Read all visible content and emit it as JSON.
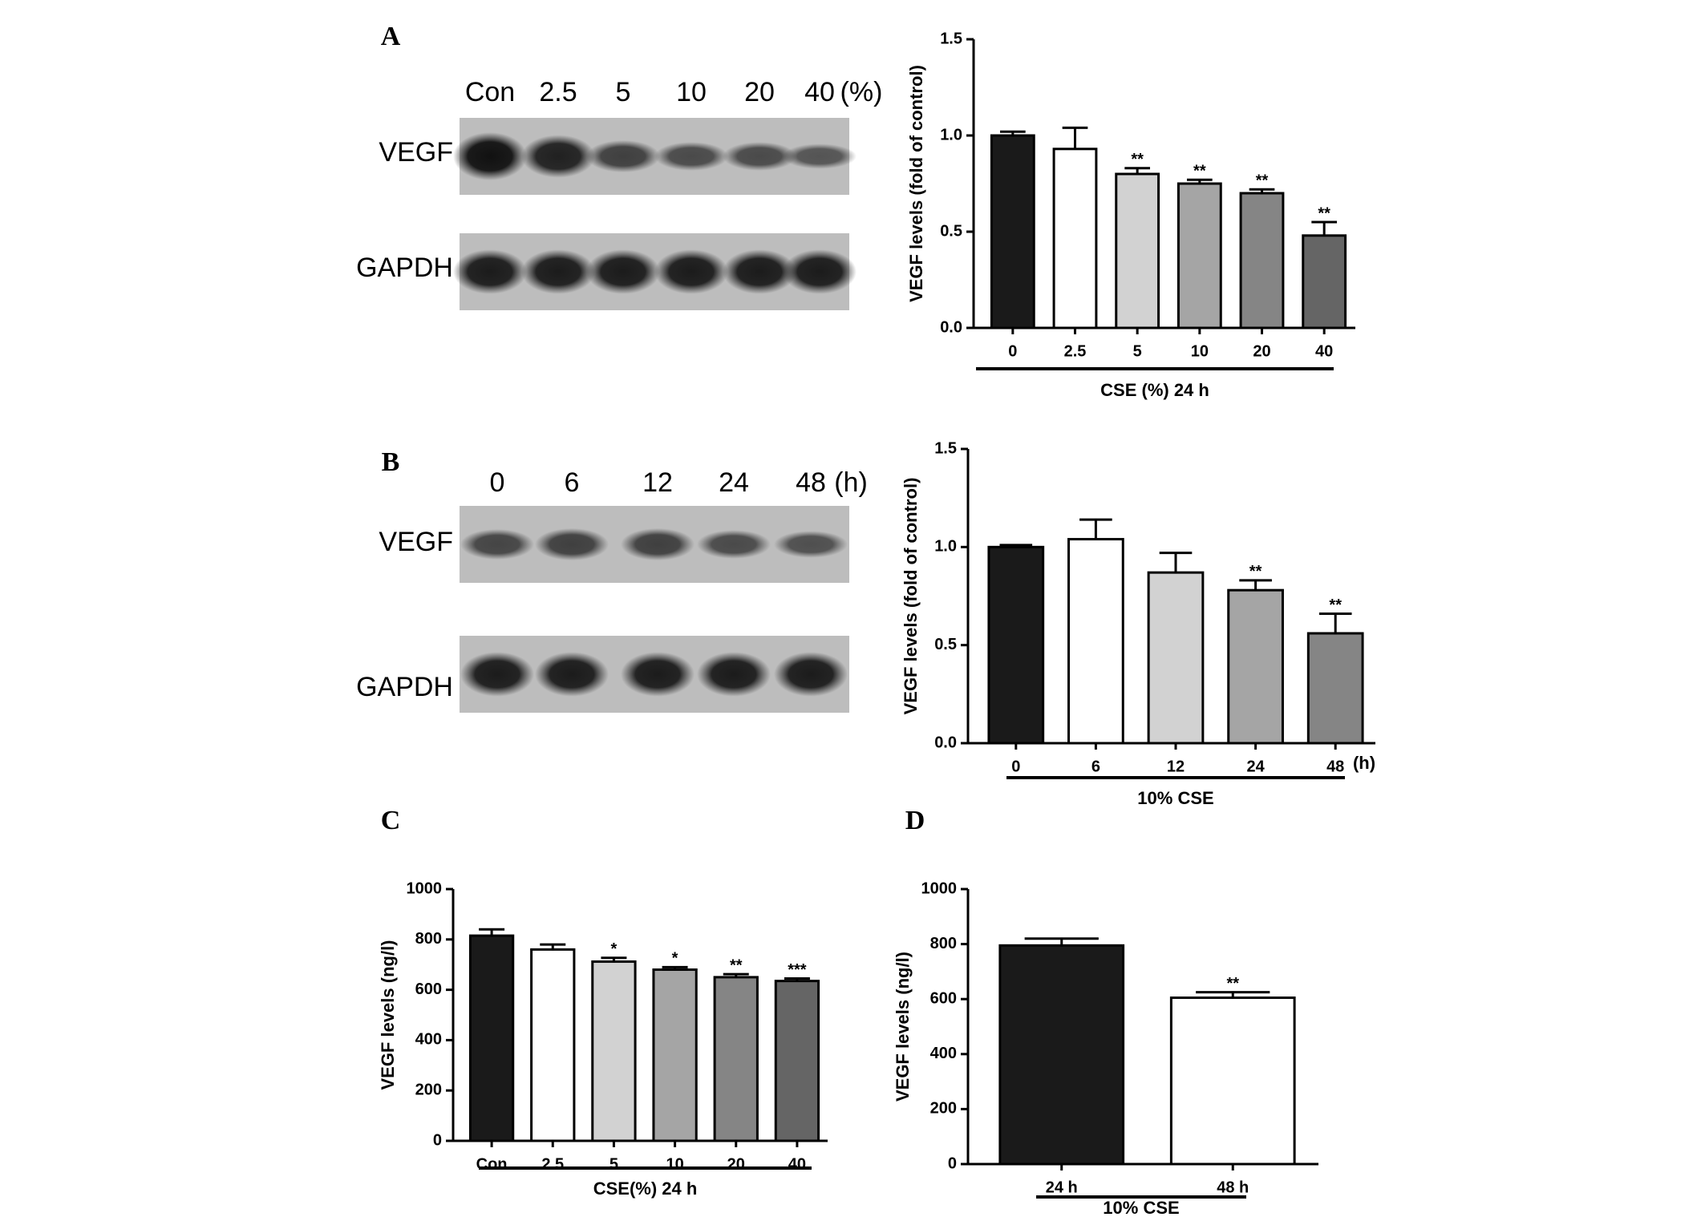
{
  "blots": [
    {
      "label": "A",
      "lanes": [
        "Con",
        "2.5",
        "5",
        "10",
        "20",
        "40"
      ],
      "unit": "(%)",
      "rows": [
        "VEGF",
        "GAPDH"
      ]
    },
    {
      "label": "B",
      "lanes": [
        "0",
        "6",
        "12",
        "24",
        "48"
      ],
      "unit": "(h)",
      "rows": [
        "VEGF",
        "GAPDH"
      ]
    }
  ],
  "chart_data": [
    {
      "type": "bar",
      "label": "A",
      "y_label": "VEGF levels (fold of control)",
      "x_label": "CSE (%)  24 h",
      "categories": [
        "0",
        "2.5",
        "5",
        "10",
        "20",
        "40"
      ],
      "values": [
        1.0,
        0.93,
        0.8,
        0.75,
        0.7,
        0.48
      ],
      "errors": [
        0.02,
        0.11,
        0.03,
        0.02,
        0.02,
        0.07
      ],
      "significance": [
        null,
        null,
        "**",
        "**",
        "**",
        "**"
      ],
      "colors": [
        "#1a1a1a",
        "#ffffff",
        "#d2d2d2",
        "#a5a5a5",
        "#858585",
        "#656565"
      ],
      "ylim": [
        0,
        1.5
      ],
      "yticks": [
        {
          "value": 0,
          "label": "0.0"
        },
        {
          "value": 0.5,
          "label": "0.5"
        },
        {
          "value": 1,
          "label": "1.0"
        },
        {
          "value": 1.5,
          "label": "1.5"
        }
      ]
    },
    {
      "type": "bar",
      "label": "B",
      "y_label": "VEGF levels (fold of control)",
      "x_label": "10% CSE",
      "x_unit": "(h)",
      "categories": [
        "0",
        "6",
        "12",
        "24",
        "48"
      ],
      "values": [
        1.0,
        1.04,
        0.87,
        0.78,
        0.56
      ],
      "errors": [
        0.01,
        0.1,
        0.1,
        0.05,
        0.1
      ],
      "significance": [
        null,
        null,
        null,
        "**",
        "**"
      ],
      "colors": [
        "#1a1a1a",
        "#ffffff",
        "#d2d2d2",
        "#a5a5a5",
        "#858585"
      ],
      "ylim": [
        0,
        1.5
      ],
      "yticks": [
        {
          "value": 0,
          "label": "0.0"
        },
        {
          "value": 0.5,
          "label": "0.5"
        },
        {
          "value": 1,
          "label": "1.0"
        },
        {
          "value": 1.5,
          "label": "1.5"
        }
      ]
    },
    {
      "type": "bar",
      "label": "C",
      "y_label": "VEGF levels  (ng/l)",
      "x_label": "CSE(%) 24 h",
      "categories": [
        "Con",
        "2.5",
        "5",
        "10",
        "20",
        "40"
      ],
      "values": [
        815,
        760,
        712,
        680,
        650,
        635
      ],
      "errors": [
        25,
        20,
        15,
        10,
        12,
        10
      ],
      "significance": [
        null,
        null,
        "*",
        "*",
        "**",
        "***"
      ],
      "colors": [
        "#1a1a1a",
        "#ffffff",
        "#d2d2d2",
        "#a5a5a5",
        "#858585",
        "#656565"
      ],
      "ylim": [
        0,
        1000
      ],
      "yticks": [
        0,
        200,
        400,
        600,
        800,
        1000
      ]
    },
    {
      "type": "bar",
      "label": "D",
      "y_label": "VEGF levels  (ng/l)",
      "x_label": "10% CSE",
      "categories": [
        "24 h",
        "48 h"
      ],
      "values": [
        795,
        605
      ],
      "errors": [
        25,
        20
      ],
      "significance": [
        null,
        "**"
      ],
      "colors": [
        "#1a1a1a",
        "#ffffff"
      ],
      "ylim": [
        0,
        1000
      ],
      "yticks": [
        0,
        200,
        400,
        600,
        800,
        1000
      ]
    }
  ]
}
